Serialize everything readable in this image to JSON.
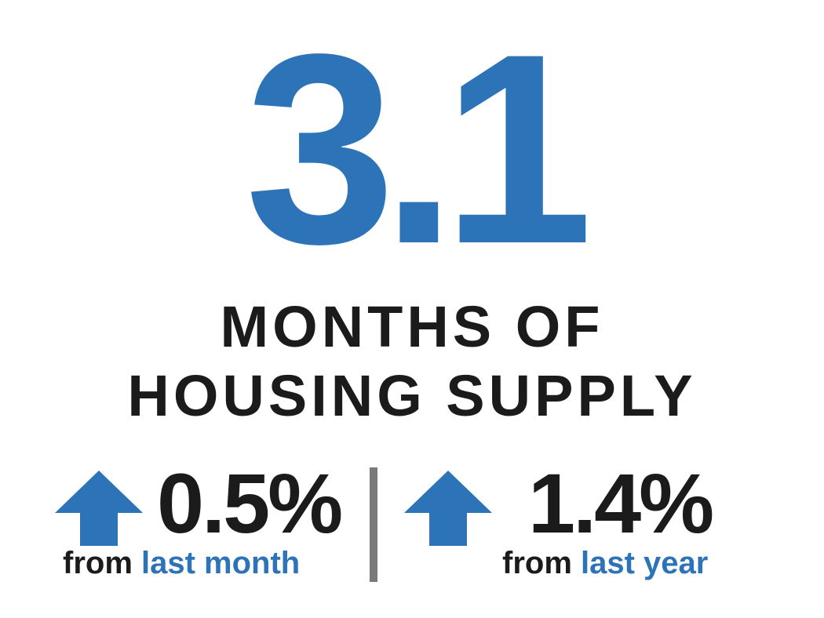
{
  "headline_value": "3.1",
  "headline_lines": [
    "MONTHS OF",
    "HOUSING SUPPLY"
  ],
  "stats": [
    {
      "direction": "up",
      "change": "0.5%",
      "from": "from",
      "period": "last month",
      "icon": "arrow-up-icon"
    },
    {
      "direction": "up",
      "change": "1.4%",
      "from": "from",
      "period": "last year",
      "icon": "arrow-up-icon"
    }
  ],
  "colors": {
    "accent": "#2d73b8",
    "text": "#1b1b1b",
    "divider": "#7a7a7a",
    "background": "#ffffff"
  }
}
